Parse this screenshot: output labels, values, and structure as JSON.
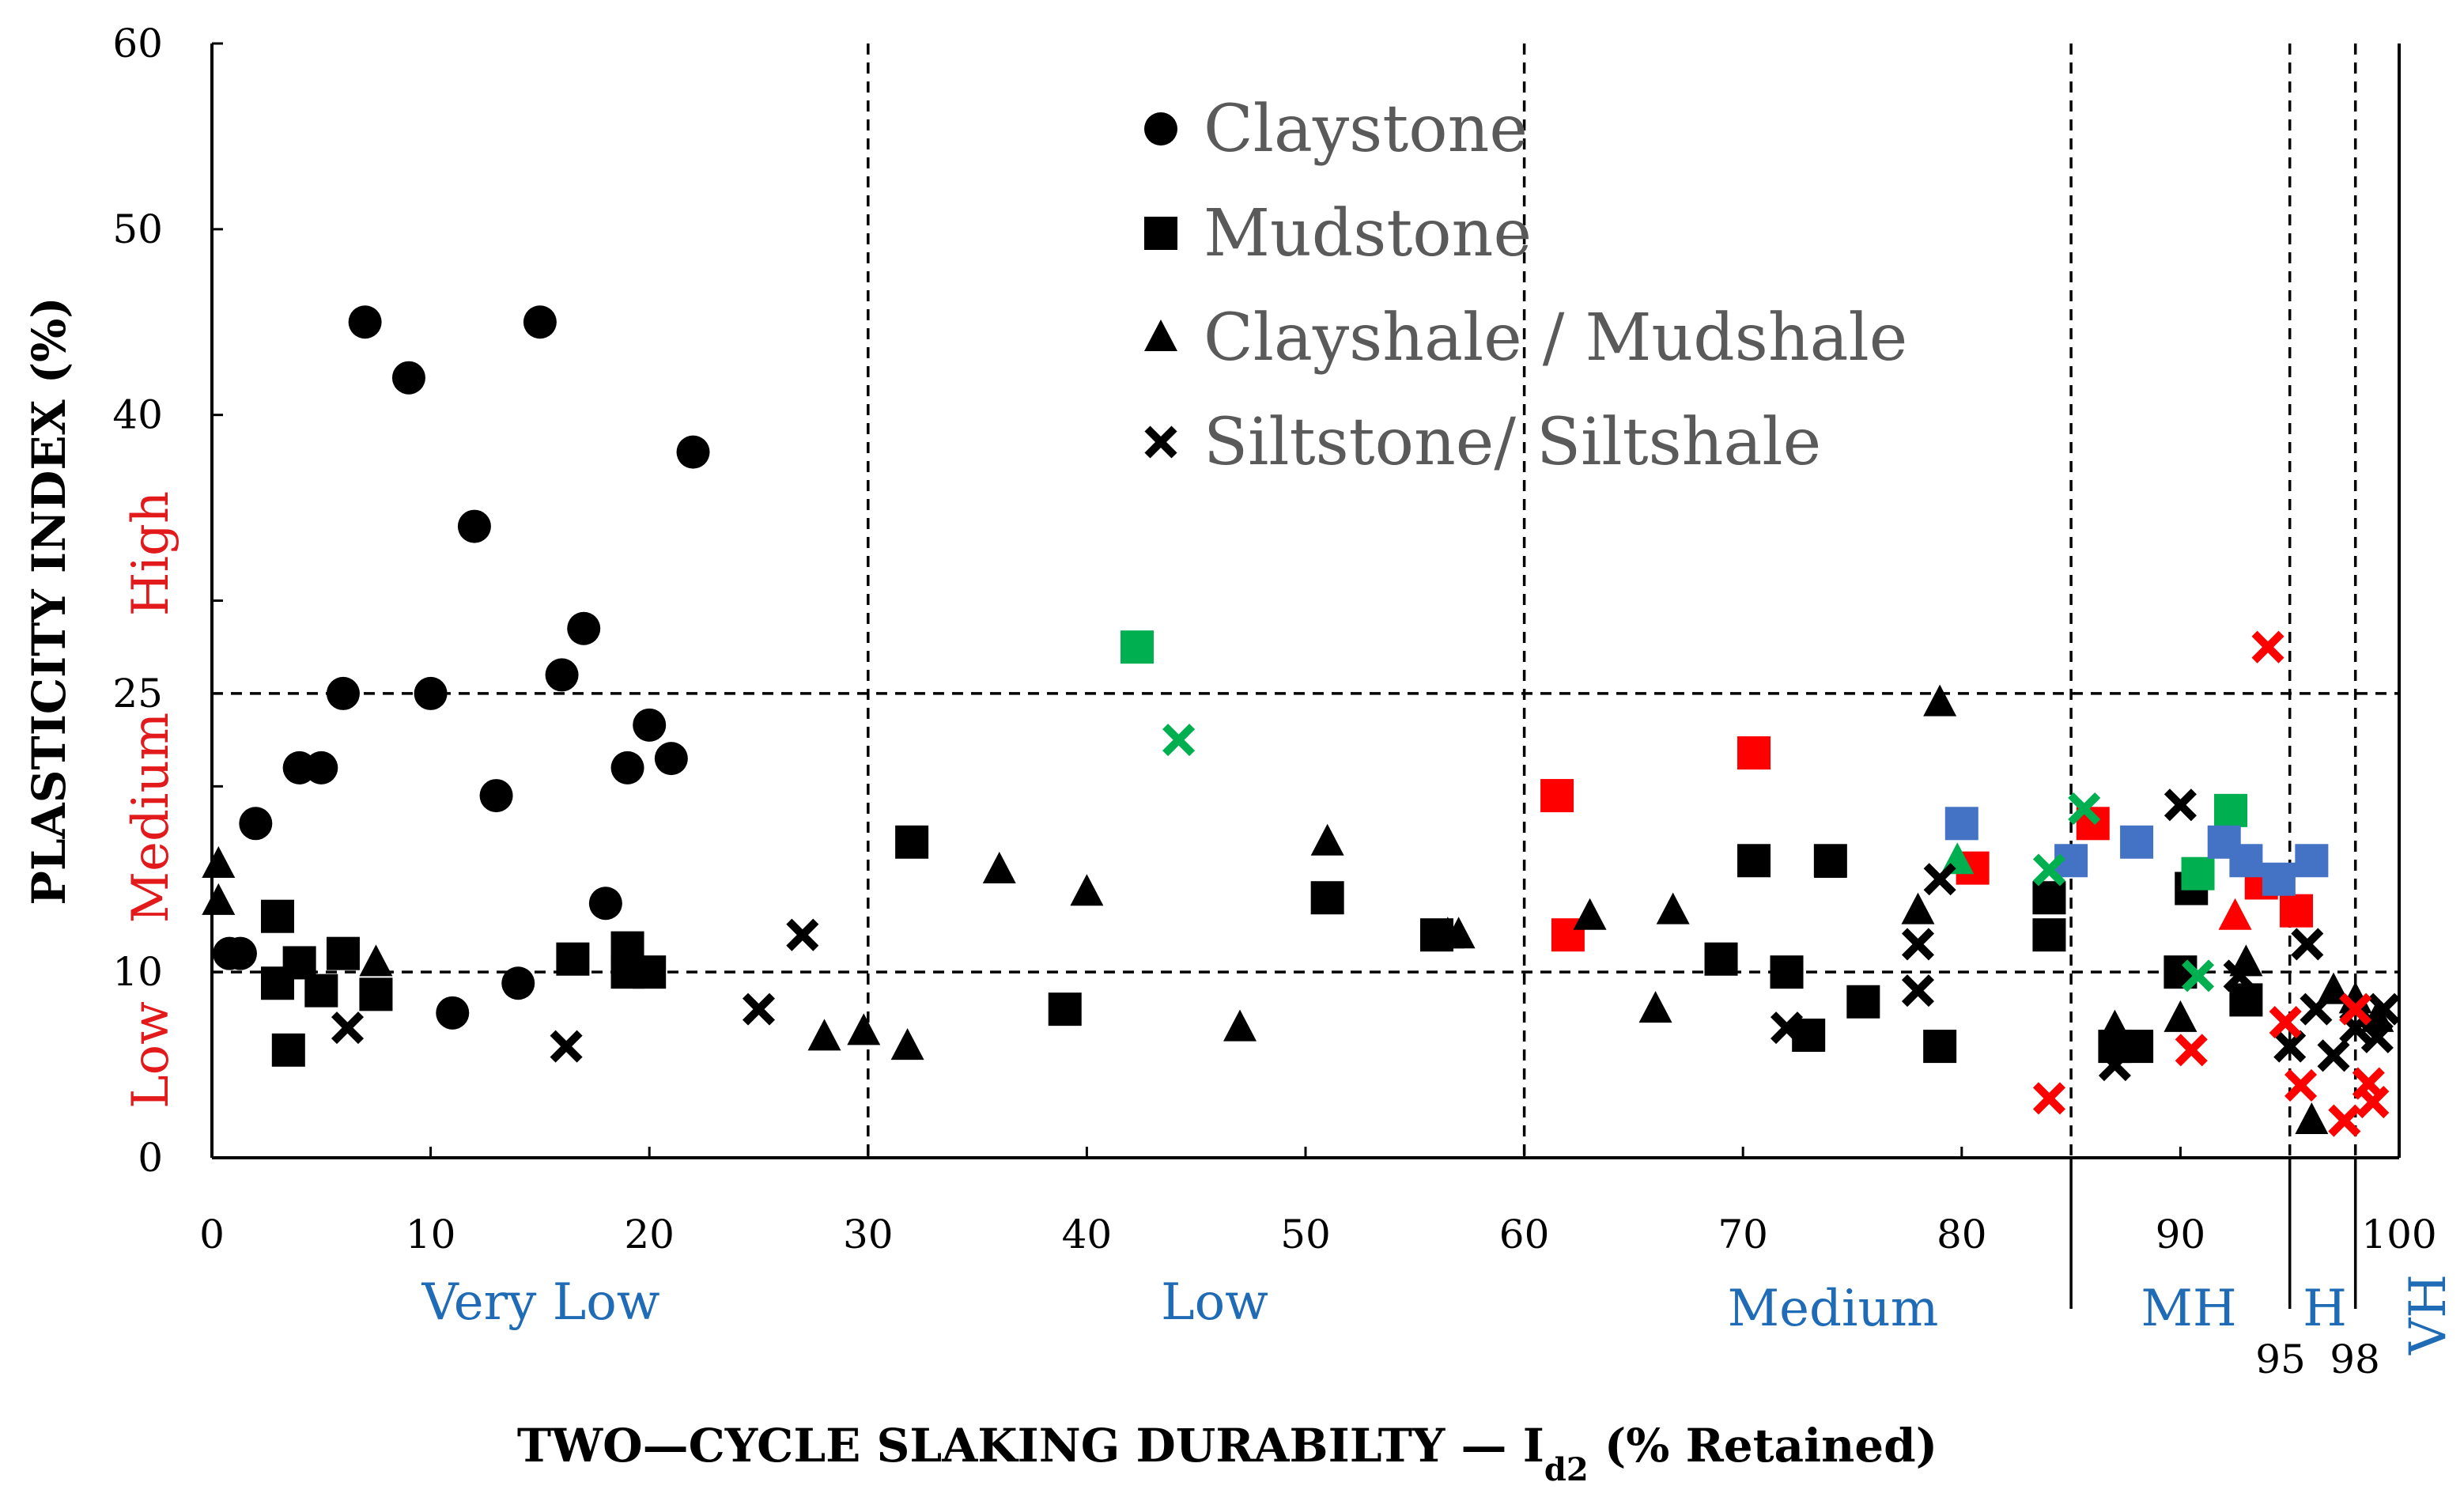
{
  "chart_data": {
    "type": "scatter",
    "title": "",
    "xlabel_main": "TWO—CYCLE SLAKING DURABILTY — I",
    "xlabel_sub": "d2",
    "xlabel_tail": " (% Retained)",
    "ylabel": "PLASTICITY INDEX (%)",
    "xlim": [
      0,
      100
    ],
    "ylim": [
      0,
      60
    ],
    "grid": false,
    "x_ticks": [
      "0",
      "10",
      "20",
      "30",
      "40",
      "50",
      "60",
      "70",
      "80",
      "90",
      "100"
    ],
    "y_ticks": [
      "0",
      "10",
      "20",
      "30",
      "40",
      "50",
      "60"
    ],
    "y_tick_labels_shown": [
      "0",
      "10",
      "25",
      "40",
      "50",
      "60"
    ],
    "y_scale_note": "piecewise axis: 0-10 Low, 10-25 Medium, 25-40 High",
    "durability_classes": [
      {
        "label": "Very Low",
        "from": 0,
        "to": 30
      },
      {
        "label": "Low",
        "from": 30,
        "to": 60
      },
      {
        "label": "Medium",
        "from": 60,
        "to": 85
      },
      {
        "label": "MH",
        "from": 85,
        "to": 95
      },
      {
        "label": "H",
        "from": 95,
        "to": 98
      },
      {
        "label": "VH",
        "from": 98,
        "to": 100
      }
    ],
    "boundary_labels": [
      "95",
      "98"
    ],
    "plasticity_classes": [
      "Low",
      "Medium",
      "High"
    ],
    "legend": [
      {
        "name": "Claystone",
        "marker": "circle"
      },
      {
        "name": "Mudstone",
        "marker": "square"
      },
      {
        "name": "Clayshale / Mudshale",
        "marker": "triangle"
      },
      {
        "name": "Siltstone/ Siltshale",
        "marker": "cross"
      }
    ],
    "series": [
      {
        "name": "Claystone",
        "marker": "circle",
        "color": "#000000",
        "points": [
          [
            0.8,
            11
          ],
          [
            1.3,
            11
          ],
          [
            2,
            18
          ],
          [
            4,
            21
          ],
          [
            5,
            21
          ],
          [
            6,
            25
          ],
          [
            7,
            45
          ],
          [
            9,
            42
          ],
          [
            10,
            25
          ],
          [
            11,
            7.8
          ],
          [
            12,
            34
          ],
          [
            13,
            19.5
          ],
          [
            14,
            9.4
          ],
          [
            15,
            45
          ],
          [
            16,
            26
          ],
          [
            17,
            28.5
          ],
          [
            18,
            13.7
          ],
          [
            19,
            21
          ],
          [
            20,
            23.3
          ],
          [
            21,
            21.5
          ],
          [
            22,
            38
          ]
        ]
      },
      {
        "name": "Mudstone",
        "marker": "square",
        "color": "#000000",
        "points": [
          [
            3,
            13
          ],
          [
            3,
            9.4
          ],
          [
            3.5,
            5.8
          ],
          [
            4,
            10.5
          ],
          [
            5,
            9
          ],
          [
            6,
            11
          ],
          [
            7.5,
            8.8
          ],
          [
            16.5,
            10.7
          ],
          [
            19,
            11.3
          ],
          [
            19,
            10
          ],
          [
            20,
            10
          ],
          [
            32,
            17
          ],
          [
            39,
            8
          ],
          [
            51,
            14
          ],
          [
            56,
            12
          ],
          [
            69,
            10.7
          ],
          [
            70.5,
            16
          ],
          [
            72,
            10
          ],
          [
            73,
            6.6
          ],
          [
            74,
            16
          ],
          [
            75.5,
            8.4
          ],
          [
            79,
            6
          ],
          [
            84,
            12
          ],
          [
            84,
            14
          ],
          [
            87,
            6
          ],
          [
            88,
            6
          ],
          [
            90,
            10
          ],
          [
            90.5,
            14.5
          ],
          [
            93,
            8.5
          ]
        ]
      },
      {
        "name": "Mudstone-green",
        "marker": "square",
        "color": "#00b050",
        "points": [
          [
            42.3,
            27.5
          ],
          [
            90.8,
            15.3
          ],
          [
            92.3,
            18.7
          ]
        ]
      },
      {
        "name": "Mudstone-red",
        "marker": "square",
        "color": "#ff0000",
        "points": [
          [
            61.5,
            19.5
          ],
          [
            62,
            12
          ],
          [
            70.5,
            21.8
          ],
          [
            80.5,
            15.6
          ],
          [
            86,
            18
          ],
          [
            93.7,
            14.8
          ],
          [
            95.3,
            13.3
          ]
        ]
      },
      {
        "name": "Mudstone-blue",
        "marker": "square",
        "color": "#4472c4",
        "points": [
          [
            80,
            18
          ],
          [
            85,
            16
          ],
          [
            88,
            17
          ],
          [
            92,
            17
          ],
          [
            93,
            16
          ],
          [
            94.5,
            15
          ],
          [
            96,
            16
          ]
        ]
      },
      {
        "name": "Clayshale / Mudshale",
        "marker": "triangle",
        "color": "#000000",
        "points": [
          [
            0.3,
            15.8
          ],
          [
            0.3,
            13.8
          ],
          [
            7.5,
            10.5
          ],
          [
            28,
            6.5
          ],
          [
            29.8,
            6.8
          ],
          [
            31.8,
            6
          ],
          [
            36,
            15.5
          ],
          [
            40,
            14.3
          ],
          [
            47,
            7
          ],
          [
            51,
            17
          ],
          [
            56.5,
            12
          ],
          [
            57,
            12
          ],
          [
            63,
            13
          ],
          [
            66,
            8
          ],
          [
            66.8,
            13.3
          ],
          [
            74,
            15.8
          ],
          [
            78,
            13.3
          ],
          [
            79,
            24.5
          ],
          [
            87,
            7
          ],
          [
            90,
            7.5
          ],
          [
            93,
            10.5
          ],
          [
            96,
            2
          ],
          [
            97,
            9
          ],
          [
            98,
            8.5
          ],
          [
            99,
            7.5
          ]
        ]
      },
      {
        "name": "Clayshale-green",
        "marker": "triangle",
        "color": "#00b050",
        "points": [
          [
            79.8,
            16
          ]
        ]
      },
      {
        "name": "Clayshale-red",
        "marker": "triangle",
        "color": "#ff0000",
        "points": [
          [
            92.5,
            13
          ]
        ]
      },
      {
        "name": "Siltstone/ Siltshale",
        "marker": "cross",
        "color": "#000000",
        "points": [
          [
            6.2,
            7
          ],
          [
            16.2,
            6
          ],
          [
            25,
            8
          ],
          [
            27,
            12
          ],
          [
            72,
            7
          ],
          [
            78,
            9
          ],
          [
            78,
            11.5
          ],
          [
            79,
            15
          ],
          [
            87,
            5
          ],
          [
            90,
            19
          ],
          [
            92.7,
            9.8
          ],
          [
            95,
            6
          ],
          [
            95.8,
            11.5
          ],
          [
            96.2,
            8
          ],
          [
            97,
            5.5
          ],
          [
            98,
            7
          ],
          [
            99,
            6.5
          ],
          [
            99.3,
            8
          ]
        ]
      },
      {
        "name": "Siltstone-green",
        "marker": "cross",
        "color": "#00b050",
        "points": [
          [
            44.2,
            22.5
          ],
          [
            84,
            15.5
          ],
          [
            85.6,
            18.8
          ],
          [
            90.8,
            9.8
          ]
        ]
      },
      {
        "name": "Siltstone-red",
        "marker": "cross",
        "color": "#ff0000",
        "points": [
          [
            84,
            3.2
          ],
          [
            90.5,
            5.8
          ],
          [
            94,
            27.5
          ],
          [
            94.8,
            7.3
          ],
          [
            95.5,
            3.9
          ],
          [
            97.5,
            2
          ],
          [
            98,
            8
          ],
          [
            98.6,
            4
          ],
          [
            98.8,
            3
          ]
        ]
      }
    ]
  }
}
